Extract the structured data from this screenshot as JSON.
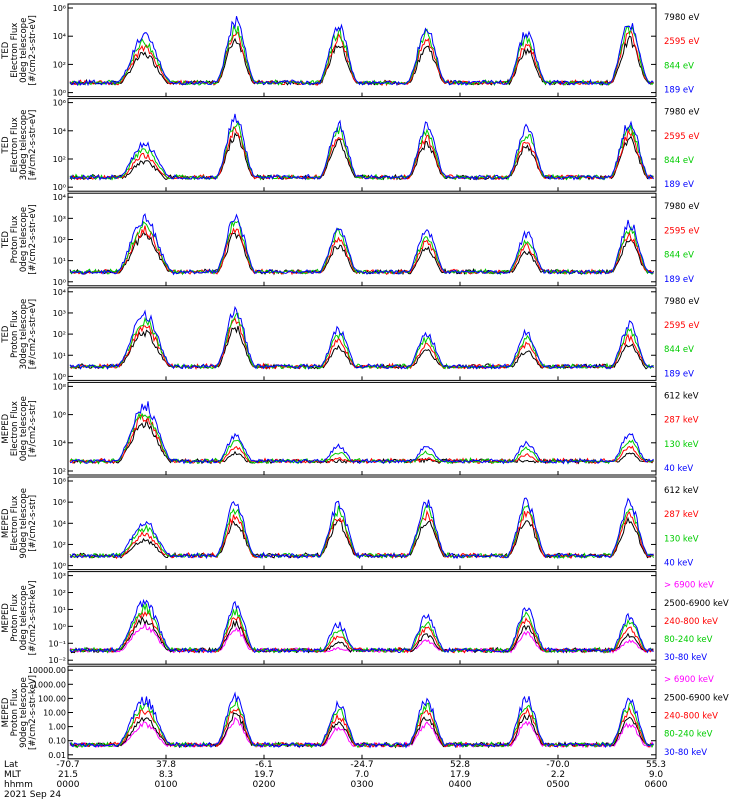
{
  "chart_data": [
    {
      "type": "line",
      "ylabel": [
        "TED",
        "Electron Flux",
        "0deg telescope",
        "[#/cm2-s-str-eV]"
      ],
      "yticks": [
        "10⁶",
        "10⁴",
        "10²",
        "10⁰"
      ],
      "series": [
        {
          "name": "7980 eV",
          "color": "#000000"
        },
        {
          "name": "2595 eV",
          "color": "#ff0000"
        },
        {
          "name": "844 eV",
          "color": "#00cc00"
        },
        {
          "name": "189 eV",
          "color": "#0000ff"
        }
      ],
      "peaks": [
        0.72,
        0.92,
        0.85,
        0.82,
        0.78,
        0.9
      ]
    },
    {
      "type": "line",
      "ylabel": [
        "TED",
        "Electron Flux",
        "30deg telescope",
        "[#/cm2-s-str-eV]"
      ],
      "yticks": [
        "10⁶",
        "10⁴",
        "10²",
        "10⁰"
      ],
      "series": [
        {
          "name": "7980 eV",
          "color": "#000000"
        },
        {
          "name": "2595 eV",
          "color": "#ff0000"
        },
        {
          "name": "844 eV",
          "color": "#00cc00"
        },
        {
          "name": "189 eV",
          "color": "#0000ff"
        }
      ],
      "peaks": [
        0.55,
        0.9,
        0.8,
        0.78,
        0.75,
        0.85
      ]
    },
    {
      "type": "line",
      "ylabel": [
        "TED",
        "Proton Flux",
        "0deg telescope",
        "[#/cm2-s-str-eV]"
      ],
      "yticks": [
        "10⁴",
        "10³",
        "10²",
        "10¹",
        "10⁰"
      ],
      "series": [
        {
          "name": "7980 eV",
          "color": "#000000"
        },
        {
          "name": "2595 eV",
          "color": "#ff0000"
        },
        {
          "name": "844 eV",
          "color": "#00cc00"
        },
        {
          "name": "189 eV",
          "color": "#0000ff"
        }
      ],
      "peaks": [
        0.82,
        0.85,
        0.7,
        0.65,
        0.6,
        0.75
      ]
    },
    {
      "type": "line",
      "ylabel": [
        "TED",
        "Proton Flux",
        "30deg telescope",
        "[#/cm2-s-str-eV]"
      ],
      "yticks": [
        "10⁴",
        "10³",
        "10²",
        "10¹",
        "10⁰"
      ],
      "series": [
        {
          "name": "7980 eV",
          "color": "#000000"
        },
        {
          "name": "2595 eV",
          "color": "#ff0000"
        },
        {
          "name": "844 eV",
          "color": "#00cc00"
        },
        {
          "name": "189 eV",
          "color": "#0000ff"
        }
      ],
      "peaks": [
        0.8,
        0.85,
        0.6,
        0.55,
        0.55,
        0.65
      ]
    },
    {
      "type": "line",
      "ylabel": [
        "MEPED",
        "Electron Flux",
        "0deg telescope",
        "[#/cm2-s-str]"
      ],
      "yticks": [
        "10⁸",
        "10⁶",
        "10⁴",
        "10²"
      ],
      "series": [
        {
          "name": "612 keV",
          "color": "#000000"
        },
        {
          "name": "287 keV",
          "color": "#ff0000"
        },
        {
          "name": "130 keV",
          "color": "#00cc00"
        },
        {
          "name": "40 keV",
          "color": "#0000ff"
        }
      ],
      "peaks": [
        0.85,
        0.45,
        0.3,
        0.3,
        0.35,
        0.45
      ]
    },
    {
      "type": "line",
      "ylabel": [
        "MEPED",
        "Electron Flux",
        "90deg telescope",
        "[#/cm2-s-str]"
      ],
      "yticks": [
        "10⁸",
        "10⁶",
        "10⁴",
        "10²",
        "10⁰"
      ],
      "series": [
        {
          "name": "612 keV",
          "color": "#000000"
        },
        {
          "name": "287 keV",
          "color": "#ff0000"
        },
        {
          "name": "130 keV",
          "color": "#00cc00"
        },
        {
          "name": "40 keV",
          "color": "#0000ff"
        }
      ],
      "peaks": [
        0.55,
        0.8,
        0.78,
        0.8,
        0.82,
        0.8
      ]
    },
    {
      "type": "line",
      "ylabel": [
        "MEPED",
        "Proton Flux",
        "0deg telescope",
        "[#/cm2-s-str-keV]"
      ],
      "yticks": [
        "10³",
        "10²",
        "10¹",
        "10⁰",
        "10⁻¹",
        "10⁻²"
      ],
      "series": [
        {
          "name": "> 6900 keV",
          "color": "#ff00ff"
        },
        {
          "name": "2500-6900 keV",
          "color": "#000000"
        },
        {
          "name": "240-800 keV",
          "color": "#ff0000"
        },
        {
          "name": "80-240 keV",
          "color": "#00cc00"
        },
        {
          "name": "30-80 keV",
          "color": "#0000ff"
        }
      ],
      "peaks": [
        0.75,
        0.7,
        0.45,
        0.55,
        0.65,
        0.55
      ]
    },
    {
      "type": "line",
      "ylabel": [
        "MEPED",
        "Proton Flux",
        "90deg telescope",
        "[#/cm2-s-str-keV]"
      ],
      "yticks": [
        "10000.00",
        "1000.00",
        "100.00",
        "10.00",
        "1.00",
        "0.10",
        "0.01"
      ],
      "series": [
        {
          "name": "> 6900 keV",
          "color": "#ff00ff"
        },
        {
          "name": "2500-6900 keV",
          "color": "#000000"
        },
        {
          "name": "240-800 keV",
          "color": "#ff0000"
        },
        {
          "name": "80-240 keV",
          "color": "#00cc00"
        },
        {
          "name": "30-80 keV",
          "color": "#0000ff"
        }
      ],
      "peaks": [
        0.7,
        0.75,
        0.65,
        0.7,
        0.72,
        0.7
      ]
    }
  ],
  "xaxis": {
    "row_labels": [
      "Lat",
      "MLT",
      "hhmm"
    ],
    "ticks": [
      {
        "lat": "-70.7",
        "mlt": "21.5",
        "hhmm": "0000"
      },
      {
        "lat": "37.8",
        "mlt": "8.3",
        "hhmm": "0100"
      },
      {
        "lat": "-6.1",
        "mlt": "19.7",
        "hhmm": "0200"
      },
      {
        "lat": "-24.7",
        "mlt": "7.0",
        "hhmm": "0300"
      },
      {
        "lat": "52.8",
        "mlt": "17.9",
        "hhmm": "0400"
      },
      {
        "lat": "-70.0",
        "mlt": "2.2",
        "hhmm": "0500"
      },
      {
        "lat": "55.3",
        "mlt": "9.0",
        "hhmm": "0600"
      }
    ],
    "date": "2021 Sep 24"
  }
}
